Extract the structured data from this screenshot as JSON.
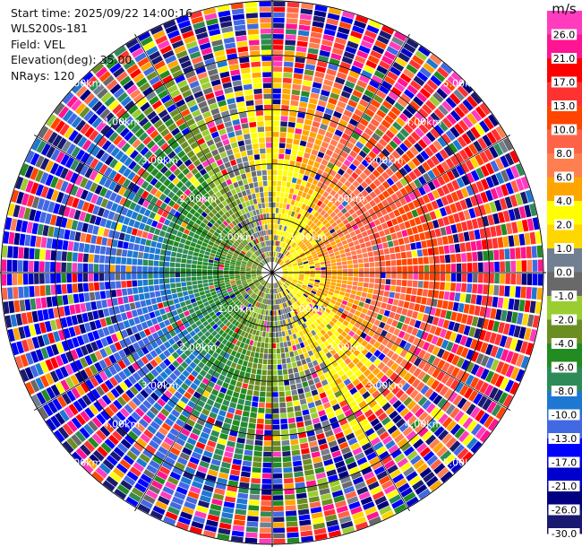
{
  "info": {
    "start_time": "Start time: 2025/09/22 14:00:16",
    "instrument": "WLS200s-181",
    "field": "Field: VEL",
    "elevation": "Elevation(deg): 35.00",
    "nrays": "NRays: 120"
  },
  "chart_data": {
    "type": "heatmap",
    "projection": "polar-ppi",
    "field": "VEL",
    "units": "m/s",
    "elevation_deg": 35.0,
    "n_rays": 120,
    "max_range_km": 5.0,
    "range_rings_km": [
      1,
      2,
      3,
      4,
      5
    ],
    "range_ring_labels": [
      "1.00km",
      "2.00km",
      "3.00km",
      "4.00km",
      "5.00km"
    ],
    "spoke_interval_deg": 30,
    "pattern": "radial velocity positive (away) toward east, negative toward west; magnitude and noise increase with range",
    "colorbar": {
      "title": "m/s",
      "tick_labels": [
        "26.0",
        "21.0",
        "17.0",
        "13.0",
        "10.0",
        "8.0",
        "6.0",
        "4.0",
        "2.0",
        "1.0",
        "0.0",
        "-1.0",
        "-2.0",
        "-4.0",
        "-6.0",
        "-8.0",
        "-10.0",
        "-13.0",
        "-17.0",
        "-21.0",
        "-26.0",
        "-30.0"
      ],
      "levels": [
        26,
        21,
        17,
        13,
        10,
        8,
        6,
        4,
        2,
        1,
        0,
        -1,
        -2,
        -4,
        -6,
        -8,
        -10,
        -13,
        -17,
        -21,
        -26,
        -30
      ],
      "colors_top_to_bottom": [
        "#ff3cbe",
        "#ff1493",
        "#ff0000",
        "#ff3232",
        "#ff4500",
        "#ff6347",
        "#ff7f50",
        "#ffa500",
        "#ffff00",
        "#ffd700",
        "#708090",
        "#696969",
        "#9acd32",
        "#6b8e23",
        "#228b22",
        "#2e8b57",
        "#1e78d2",
        "#4169e1",
        "#0000ff",
        "#0000cd",
        "#000080",
        "#191970"
      ]
    }
  }
}
